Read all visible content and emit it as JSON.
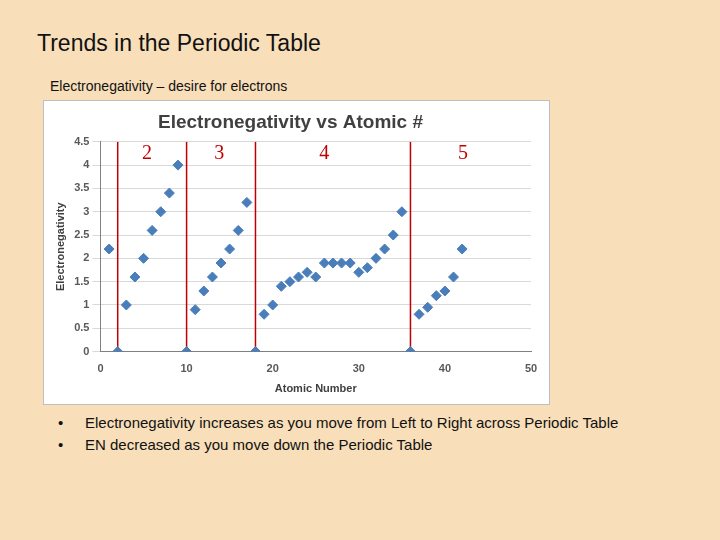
{
  "slide": {
    "title": "Trends in the Periodic Table",
    "subtitle": "Electronegativity – desire for electrons",
    "bullets": [
      "Electronegativity increases as you move from Left to Right across Periodic Table",
      "EN decreased as you move down the Periodic Table"
    ]
  },
  "chart_data": {
    "type": "scatter",
    "title": "Electronegativity vs Atomic #",
    "x_label": "Atomic Number",
    "y_label": "Electronegativity",
    "x": [
      1,
      2,
      3,
      4,
      5,
      6,
      7,
      8,
      9,
      10,
      11,
      12,
      13,
      14,
      15,
      16,
      17,
      18,
      19,
      20,
      21,
      22,
      23,
      24,
      25,
      26,
      27,
      28,
      29,
      30,
      31,
      32,
      33,
      34,
      35,
      36,
      37,
      38,
      39,
      40,
      41,
      42
    ],
    "values": [
      2.2,
      0,
      1.0,
      1.6,
      2.0,
      2.6,
      3.0,
      3.4,
      4.0,
      0,
      0.9,
      1.3,
      1.6,
      1.9,
      2.2,
      2.6,
      3.2,
      0,
      0.8,
      1.0,
      1.4,
      1.5,
      1.6,
      1.7,
      1.6,
      1.9,
      1.9,
      1.9,
      1.9,
      1.7,
      1.8,
      2.0,
      2.2,
      2.5,
      3.0,
      0,
      0.8,
      0.95,
      1.2,
      1.3,
      1.6,
      2.2
    ],
    "color": "#4a7ebb",
    "marker": "diamond",
    "xlim": [
      0,
      50
    ],
    "xticks": [
      0,
      10,
      20,
      30,
      40,
      50
    ],
    "ylim": [
      0,
      4.5
    ],
    "yticks": [
      0,
      0.5,
      1,
      1.5,
      2,
      2.5,
      3,
      3.5,
      4,
      4.5
    ],
    "grid": "y",
    "vlines": {
      "x": [
        2,
        10,
        18,
        36
      ],
      "color": "#c00000"
    },
    "annotations": [
      {
        "text": "2",
        "x": 5.4,
        "y": 4.25,
        "color": "#c00000"
      },
      {
        "text": "3",
        "x": 13.8,
        "y": 4.25,
        "color": "#c00000"
      },
      {
        "text": "4",
        "x": 26,
        "y": 4.25,
        "color": "#c00000"
      },
      {
        "text": "5",
        "x": 42.1,
        "y": 4.25,
        "color": "#c00000"
      }
    ]
  }
}
